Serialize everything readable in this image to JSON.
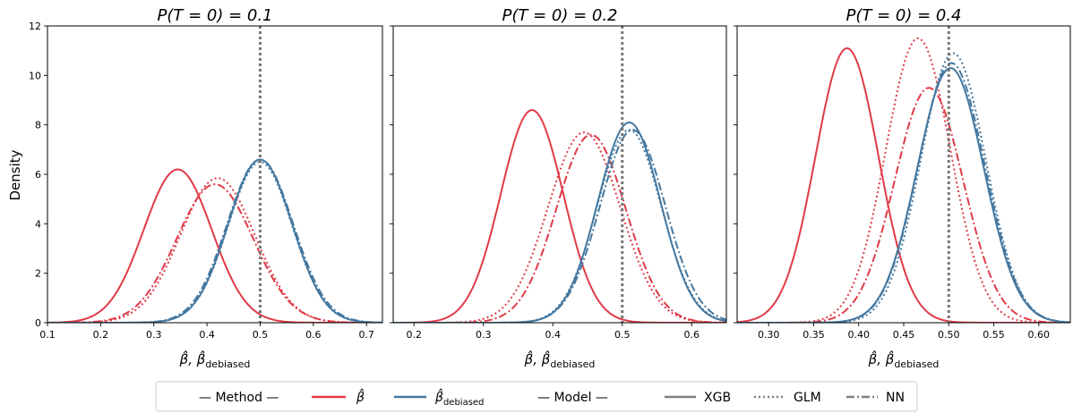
{
  "colors": {
    "beta_hat": "#e03a47",
    "beta_debiased": "#4478a0",
    "reference_line": "#777777",
    "legend_model": "#808080"
  },
  "ylabel": "Density",
  "legend": {
    "method_header": "— Method —",
    "model_header": "— Model —",
    "beta_hat": "β̂",
    "beta_debiased": "β̂",
    "beta_debiased_sub": "debiased",
    "xgb": "XGB",
    "glm": "GLM",
    "nn": "NN"
  },
  "chart_data": [
    {
      "type": "line",
      "title": "P(T = 0) = 0.1",
      "xlabel": "β̂,  β̂debiased",
      "xlim": [
        0.1,
        0.73
      ],
      "ylim": [
        0,
        12
      ],
      "xticks": [
        0.1,
        0.2,
        0.3,
        0.4,
        0.5,
        0.6,
        0.7
      ],
      "xtick_labels": [
        "0.1",
        "0.2",
        "0.3",
        "0.4",
        "0.5",
        "0.6",
        "0.7"
      ],
      "yticks": [
        0,
        2,
        4,
        6,
        8,
        10,
        12
      ],
      "ytick_labels": [
        "0",
        "2",
        "4",
        "6",
        "8",
        "10",
        "12"
      ],
      "reference_x": 0.5,
      "series": [
        {
          "estimator": "beta_hat",
          "model": "XGB",
          "mean": 0.345,
          "sd": 0.064,
          "peak": 6.2
        },
        {
          "estimator": "beta_hat",
          "model": "GLM",
          "mean": 0.42,
          "sd": 0.07,
          "peak": 5.85
        },
        {
          "estimator": "beta_hat",
          "model": "NN",
          "mean": 0.415,
          "sd": 0.072,
          "peak": 5.6
        },
        {
          "estimator": "beta_debiased",
          "model": "XGB",
          "mean": 0.5,
          "sd": 0.06,
          "peak": 6.6
        },
        {
          "estimator": "beta_debiased",
          "model": "GLM",
          "mean": 0.5,
          "sd": 0.06,
          "peak": 6.5
        },
        {
          "estimator": "beta_debiased",
          "model": "NN",
          "mean": 0.5,
          "sd": 0.062,
          "peak": 6.6
        }
      ]
    },
    {
      "type": "line",
      "title": "P(T = 0) = 0.2",
      "xlabel": "β̂,  β̂debiased",
      "xlim": [
        0.17,
        0.65
      ],
      "ylim": [
        0,
        12
      ],
      "xticks": [
        0.2,
        0.3,
        0.4,
        0.5,
        0.6
      ],
      "xtick_labels": [
        "0.2",
        "0.3",
        "0.4",
        "0.5",
        "0.6"
      ],
      "yticks": [
        0,
        2,
        4,
        6,
        8,
        10,
        12
      ],
      "ytick_labels": [],
      "reference_x": 0.5,
      "series": [
        {
          "estimator": "beta_hat",
          "model": "XGB",
          "mean": 0.37,
          "sd": 0.045,
          "peak": 8.6
        },
        {
          "estimator": "beta_hat",
          "model": "GLM",
          "mean": 0.445,
          "sd": 0.052,
          "peak": 7.7
        },
        {
          "estimator": "beta_hat",
          "model": "NN",
          "mean": 0.455,
          "sd": 0.05,
          "peak": 7.6
        },
        {
          "estimator": "beta_debiased",
          "model": "XGB",
          "mean": 0.51,
          "sd": 0.045,
          "peak": 8.1
        },
        {
          "estimator": "beta_debiased",
          "model": "GLM",
          "mean": 0.51,
          "sd": 0.046,
          "peak": 7.8
        },
        {
          "estimator": "beta_debiased",
          "model": "NN",
          "mean": 0.515,
          "sd": 0.047,
          "peak": 7.8
        }
      ]
    },
    {
      "type": "line",
      "title": "P(T = 0) = 0.4",
      "xlabel": "β̂,  β̂debiased",
      "xlim": [
        0.265,
        0.635
      ],
      "ylim": [
        0,
        12
      ],
      "xticks": [
        0.3,
        0.35,
        0.4,
        0.45,
        0.5,
        0.55,
        0.6
      ],
      "xtick_labels": [
        "0.30",
        "0.35",
        "0.40",
        "0.45",
        "0.50",
        "0.55",
        "0.60"
      ],
      "yticks": [
        0,
        2,
        4,
        6,
        8,
        10,
        12
      ],
      "ytick_labels": [],
      "reference_x": 0.5,
      "series": [
        {
          "estimator": "beta_hat",
          "model": "XGB",
          "mean": 0.387,
          "sd": 0.035,
          "peak": 11.1
        },
        {
          "estimator": "beta_hat",
          "model": "GLM",
          "mean": 0.466,
          "sd": 0.036,
          "peak": 11.5
        },
        {
          "estimator": "beta_hat",
          "model": "NN",
          "mean": 0.478,
          "sd": 0.038,
          "peak": 9.5
        },
        {
          "estimator": "beta_debiased",
          "model": "XGB",
          "mean": 0.502,
          "sd": 0.037,
          "peak": 10.3
        },
        {
          "estimator": "beta_debiased",
          "model": "GLM",
          "mean": 0.505,
          "sd": 0.036,
          "peak": 10.9
        },
        {
          "estimator": "beta_debiased",
          "model": "NN",
          "mean": 0.503,
          "sd": 0.037,
          "peak": 10.5
        }
      ]
    }
  ]
}
